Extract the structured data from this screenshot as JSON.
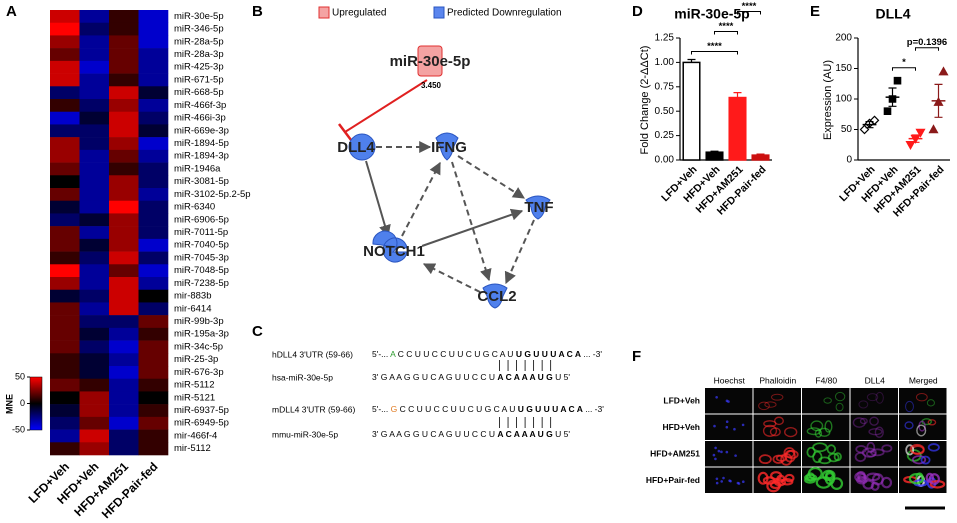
{
  "chart_data": [
    {
      "type": "heatmap",
      "panel": "A",
      "rows": [
        "miR-30e-5p",
        "miR-346-5p",
        "miR-28a-5p",
        "miR-28a-3p",
        "miR-425-3p",
        "miR-671-5p",
        "miR-668-5p",
        "miR-466f-3p",
        "miR-466i-3p",
        "miR-669e-3p",
        "miR-1894-5p",
        "miR-1894-3p",
        "miR-1946a",
        "miR-3081-5p",
        "miR-3102-5p.2-5p",
        "miR-6340",
        "miR-6906-5p",
        "miR-7011-5p",
        "miR-7040-5p",
        "miR-7045-3p",
        "miR-7048-5p",
        "miR-7238-5p",
        "mir-883b",
        "mir-6414",
        "miR-99b-3p",
        "miR-195a-3p",
        "miR-34c-5p",
        "miR-25-3p",
        "miR-676-3p",
        "miR-5112",
        "miR-5121",
        "miR-6937-5p",
        "miR-6949-5p",
        "mir-466f-4",
        "mir-5112"
      ],
      "columns": [
        "LFD+Veh",
        "HFD+Veh",
        "HFD+AM251",
        "HFD-Pair-fed"
      ],
      "values": [
        [
          40,
          -30,
          10,
          -40
        ],
        [
          50,
          -20,
          10,
          -40
        ],
        [
          30,
          -30,
          20,
          -40
        ],
        [
          20,
          -30,
          20,
          -30
        ],
        [
          40,
          -40,
          20,
          -30
        ],
        [
          40,
          -30,
          10,
          -30
        ],
        [
          -20,
          -30,
          40,
          -10
        ],
        [
          10,
          -20,
          30,
          -30
        ],
        [
          -40,
          -10,
          40,
          -20
        ],
        [
          -20,
          -20,
          40,
          -10
        ],
        [
          30,
          -20,
          30,
          -40
        ],
        [
          30,
          -30,
          20,
          -30
        ],
        [
          20,
          -30,
          10,
          -20
        ],
        [
          0,
          -30,
          30,
          -20
        ],
        [
          20,
          -30,
          30,
          -30
        ],
        [
          -10,
          -30,
          50,
          -20
        ],
        [
          -20,
          -10,
          30,
          -20
        ],
        [
          20,
          -30,
          30,
          -20
        ],
        [
          20,
          -10,
          30,
          -40
        ],
        [
          10,
          -20,
          40,
          -20
        ],
        [
          50,
          -30,
          20,
          -40
        ],
        [
          30,
          -30,
          40,
          -30
        ],
        [
          -10,
          -20,
          40,
          0
        ],
        [
          20,
          -30,
          40,
          -20
        ],
        [
          20,
          -20,
          -20,
          20
        ],
        [
          20,
          -10,
          -30,
          10
        ],
        [
          20,
          -20,
          -40,
          20
        ],
        [
          10,
          -10,
          -30,
          20
        ],
        [
          10,
          -10,
          -40,
          20
        ],
        [
          20,
          10,
          -30,
          10
        ],
        [
          0,
          30,
          -30,
          0
        ],
        [
          -10,
          30,
          -30,
          10
        ],
        [
          -20,
          20,
          -40,
          20
        ],
        [
          -30,
          40,
          -20,
          10
        ],
        [
          10,
          30,
          -20,
          10
        ]
      ],
      "colors": [
        "#0000ff",
        "#000000",
        "#ff0000"
      ],
      "zlim": [
        -50,
        50
      ],
      "zticks": [
        50,
        0,
        -50
      ],
      "colorbar_label": "MNE"
    },
    {
      "type": "bar",
      "panel": "D",
      "title": "miR-30e-5p",
      "ylabel": "Fold Change (2-ΔΔCt)",
      "categories": [
        "LFD+Veh",
        "HFD+Veh",
        "HFD+AM251",
        "HFD-Pair-fed"
      ],
      "values": [
        1.0,
        0.08,
        0.64,
        0.05
      ],
      "errors": [
        0.03,
        0.01,
        0.05,
        0.01
      ],
      "colors": [
        "#ffffff",
        "#000000",
        "#ff1a1a",
        "#cc1010"
      ],
      "edgecolors": [
        "#000000",
        "#000000",
        "#ff1a1a",
        "#cc1010"
      ],
      "ylim": [
        0,
        1.25
      ],
      "yticks": [
        {
          "value": 0,
          "label": "0.00"
        },
        0.25,
        {
          "value": 0.5,
          "label": "0.50"
        },
        0.75,
        {
          "value": 1,
          "label": "1.00"
        },
        1.25
      ],
      "comparisons": [
        {
          "groups": [
            "LFD+Veh",
            "HFD+AM251"
          ],
          "label": "****"
        },
        {
          "groups": [
            "HFD+Veh",
            "HFD+AM251"
          ],
          "label": "****"
        },
        {
          "groups": [
            "HFD+AM251",
            "HFD-Pair-fed"
          ],
          "label": "****"
        }
      ]
    },
    {
      "type": "scatter",
      "panel": "E",
      "title": "DLL4",
      "ylabel": "Expression (AU)",
      "categories": [
        "LFD+Veh",
        "HFD+Veh",
        "HFD+AM251",
        "HFD+Pair-fed"
      ],
      "points": [
        [
          50,
          60,
          65
        ],
        [
          80,
          100,
          130
        ],
        [
          25,
          35,
          45
        ],
        [
          50,
          95,
          145
        ]
      ],
      "means": [
        58,
        103,
        35,
        97
      ],
      "sems": [
        5,
        15,
        6,
        27
      ],
      "markers": [
        "diamond-open",
        "square",
        "triangle-down",
        "triangle"
      ],
      "colors": [
        "#000000",
        "#000000",
        "#ff1a1a",
        "#8b1a1a"
      ],
      "ylim": [
        0,
        200
      ],
      "yticks": [
        0,
        50,
        100,
        150,
        200
      ],
      "comparisons": [
        {
          "groups": [
            "HFD+Veh",
            "HFD+AM251"
          ],
          "label": "*"
        },
        {
          "groups": [
            "HFD+AM251",
            "HFD+Pair-fed"
          ],
          "label": "p=0.1396"
        }
      ]
    }
  ],
  "network": {
    "panel": "B",
    "legend": [
      {
        "label": "Upregulated",
        "color": "#f4a3a3"
      },
      {
        "label": "Predicted Downregulation",
        "color": "#5b86ee"
      }
    ],
    "nodes": [
      "miR-30e-5p",
      "DLL4",
      "IFNG",
      "TNF",
      "NOTCH1",
      "CCL2"
    ],
    "edge_label": "3.450"
  },
  "alignment": {
    "panel": "C",
    "rows": [
      {
        "label": "hDLL4 3'UTR (59-66)",
        "segments": [
          {
            "text": "5'-... ",
            "style": "plain"
          },
          {
            "text": "A",
            "style": "green"
          },
          {
            "text": " C C U U C C U U C U G C A U ",
            "style": "plain"
          },
          {
            "text": "U G U U U A C A",
            "style": "bold"
          },
          {
            "text": " ... -3'",
            "style": "plain"
          }
        ]
      },
      {
        "label": "hsa-miR-30e-5p",
        "segments": [
          {
            "text": "3' G A A G G U C A G U U C C U ",
            "style": "plain"
          },
          {
            "text": "A C A A A U G",
            "style": "bold"
          },
          {
            "text": " U 5'",
            "style": "plain"
          }
        ]
      },
      {
        "label": "mDLL4 3'UTR (59-66)",
        "segments": [
          {
            "text": "5'-... ",
            "style": "plain"
          },
          {
            "text": "G",
            "style": "orange"
          },
          {
            "text": " C C U U C C U U C U G C A U ",
            "style": "plain"
          },
          {
            "text": "U G U U U A C A",
            "style": "bold"
          },
          {
            "text": " ... -3'",
            "style": "plain"
          }
        ]
      },
      {
        "label": "mmu-miR-30e-5p",
        "segments": [
          {
            "text": "3' G A A G G U C A G U U C C U ",
            "style": "plain"
          },
          {
            "text": "A C A A A U G",
            "style": "bold"
          },
          {
            "text": " U 5'",
            "style": "plain"
          }
        ]
      }
    ]
  },
  "microscopy": {
    "panel": "F",
    "channels": [
      {
        "name": "Hoechst",
        "color": "#3a3aff"
      },
      {
        "name": "Phalloidin",
        "color": "#ff2a2a"
      },
      {
        "name": "F4/80",
        "color": "#33cc33"
      },
      {
        "name": "DLL4",
        "color": "#9a30c0"
      },
      {
        "name": "Merged",
        "color": "#000000"
      }
    ],
    "groups": [
      "LFD+Veh",
      "HFD+Veh",
      "HFD+AM251",
      "HFD+Pair-fed"
    ]
  }
}
